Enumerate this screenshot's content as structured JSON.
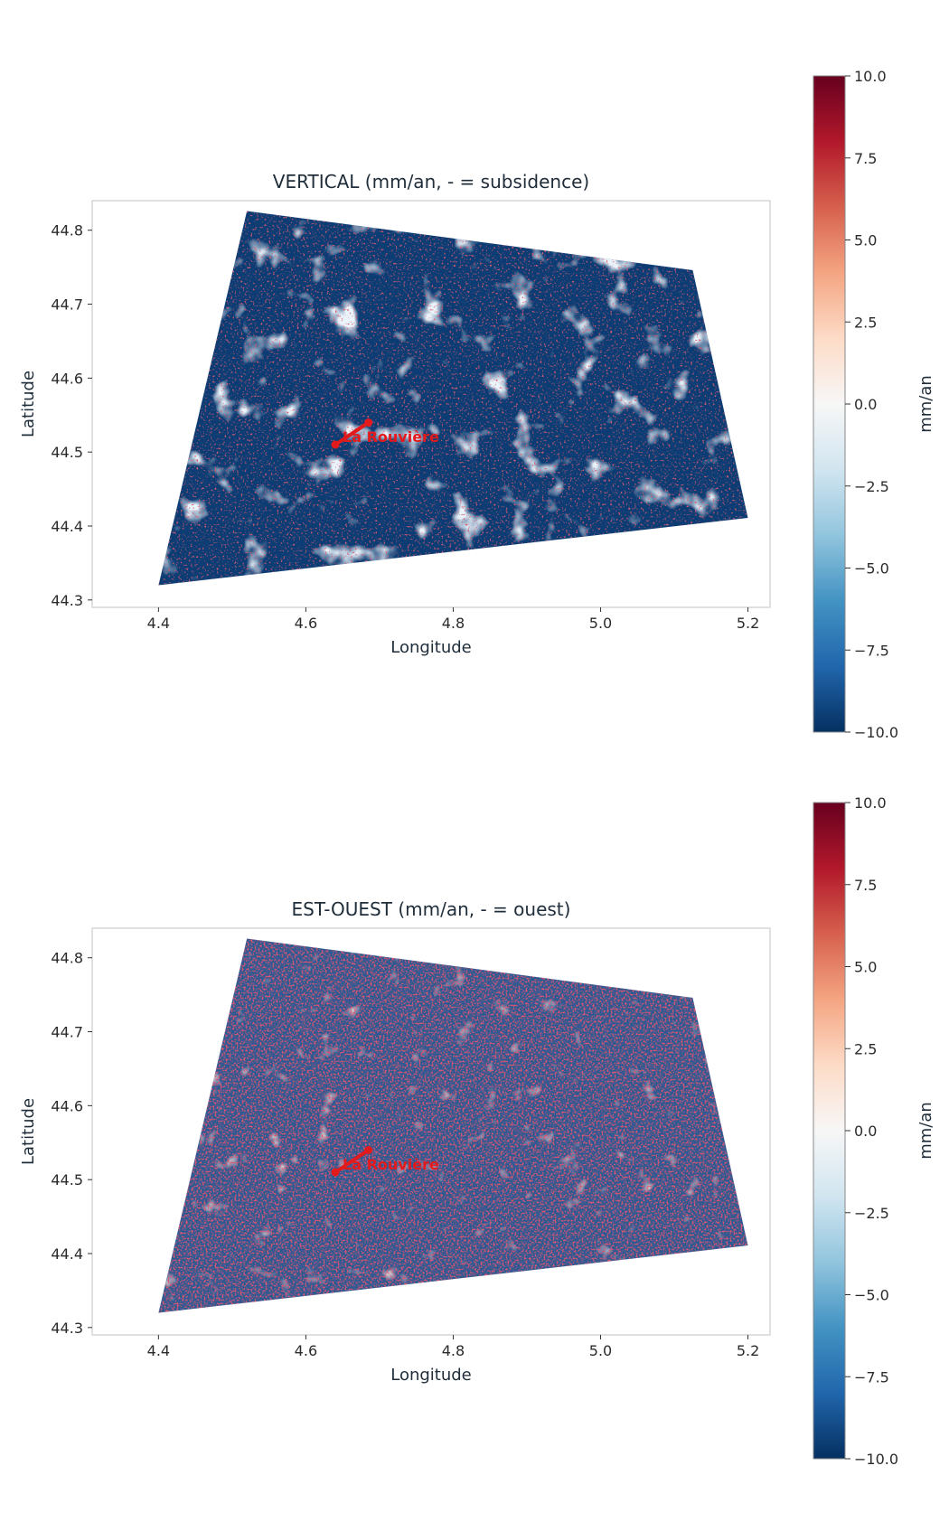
{
  "chart_data": [
    {
      "type": "heatmap",
      "title": "VERTICAL (mm/an, - = subsidence)",
      "xlabel": "Longitude",
      "ylabel": "Latitude",
      "xlim": [
        4.31,
        5.23
      ],
      "ylim": [
        44.29,
        44.84
      ],
      "xticks": [
        "4.4",
        "4.6",
        "4.8",
        "5.0",
        "5.2"
      ],
      "xtick_values": [
        4.4,
        4.6,
        4.8,
        5.0,
        5.2
      ],
      "yticks": [
        "44.3",
        "44.4",
        "44.5",
        "44.6",
        "44.7",
        "44.8"
      ],
      "ytick_values": [
        44.3,
        44.4,
        44.5,
        44.6,
        44.7,
        44.8
      ],
      "footprint_lonlat": [
        [
          4.52,
          44.826
        ],
        [
          5.125,
          44.746
        ],
        [
          5.2,
          44.411
        ],
        [
          4.4,
          44.32
        ]
      ],
      "grid": false,
      "colormap": "RdBu_r",
      "colorbar": {
        "label": "mm/an",
        "range": [
          -10.0,
          10.0
        ],
        "ticks": [
          "10.0",
          "7.5",
          "5.0",
          "2.5",
          "0.0",
          "−2.5",
          "−5.0",
          "−7.5",
          "−10.0"
        ],
        "tick_values": [
          10,
          7.5,
          5,
          2.5,
          0,
          -2.5,
          -5,
          -7.5,
          -10
        ]
      },
      "dominant_sign": "negative",
      "annotation": {
        "label": "La Rouvière",
        "color": "#e31a1c",
        "line_lonlat": [
          [
            4.64,
            44.51
          ],
          [
            4.685,
            44.54
          ]
        ]
      }
    },
    {
      "type": "heatmap",
      "title": "EST-OUEST (mm/an, - = ouest)",
      "xlabel": "Longitude",
      "ylabel": "Latitude",
      "xlim": [
        4.31,
        5.23
      ],
      "ylim": [
        44.29,
        44.84
      ],
      "xticks": [
        "4.4",
        "4.6",
        "4.8",
        "5.0",
        "5.2"
      ],
      "xtick_values": [
        4.4,
        4.6,
        4.8,
        5.0,
        5.2
      ],
      "yticks": [
        "44.3",
        "44.4",
        "44.5",
        "44.6",
        "44.7",
        "44.8"
      ],
      "ytick_values": [
        44.3,
        44.4,
        44.5,
        44.6,
        44.7,
        44.8
      ],
      "footprint_lonlat": [
        [
          4.52,
          44.826
        ],
        [
          5.125,
          44.746
        ],
        [
          5.2,
          44.411
        ],
        [
          4.4,
          44.32
        ]
      ],
      "grid": false,
      "colormap": "RdBu_r",
      "colorbar": {
        "label": "mm/an",
        "range": [
          -10.0,
          10.0
        ],
        "ticks": [
          "10.0",
          "7.5",
          "5.0",
          "2.5",
          "0.0",
          "−2.5",
          "−5.0",
          "−7.5",
          "−10.0"
        ],
        "tick_values": [
          10,
          7.5,
          5,
          2.5,
          0,
          -2.5,
          -5,
          -7.5,
          -10
        ]
      },
      "dominant_sign": "mixed",
      "annotation": {
        "label": "La Rouvière",
        "color": "#e31a1c",
        "line_lonlat": [
          [
            4.64,
            44.51
          ],
          [
            4.685,
            44.54
          ]
        ]
      }
    }
  ]
}
